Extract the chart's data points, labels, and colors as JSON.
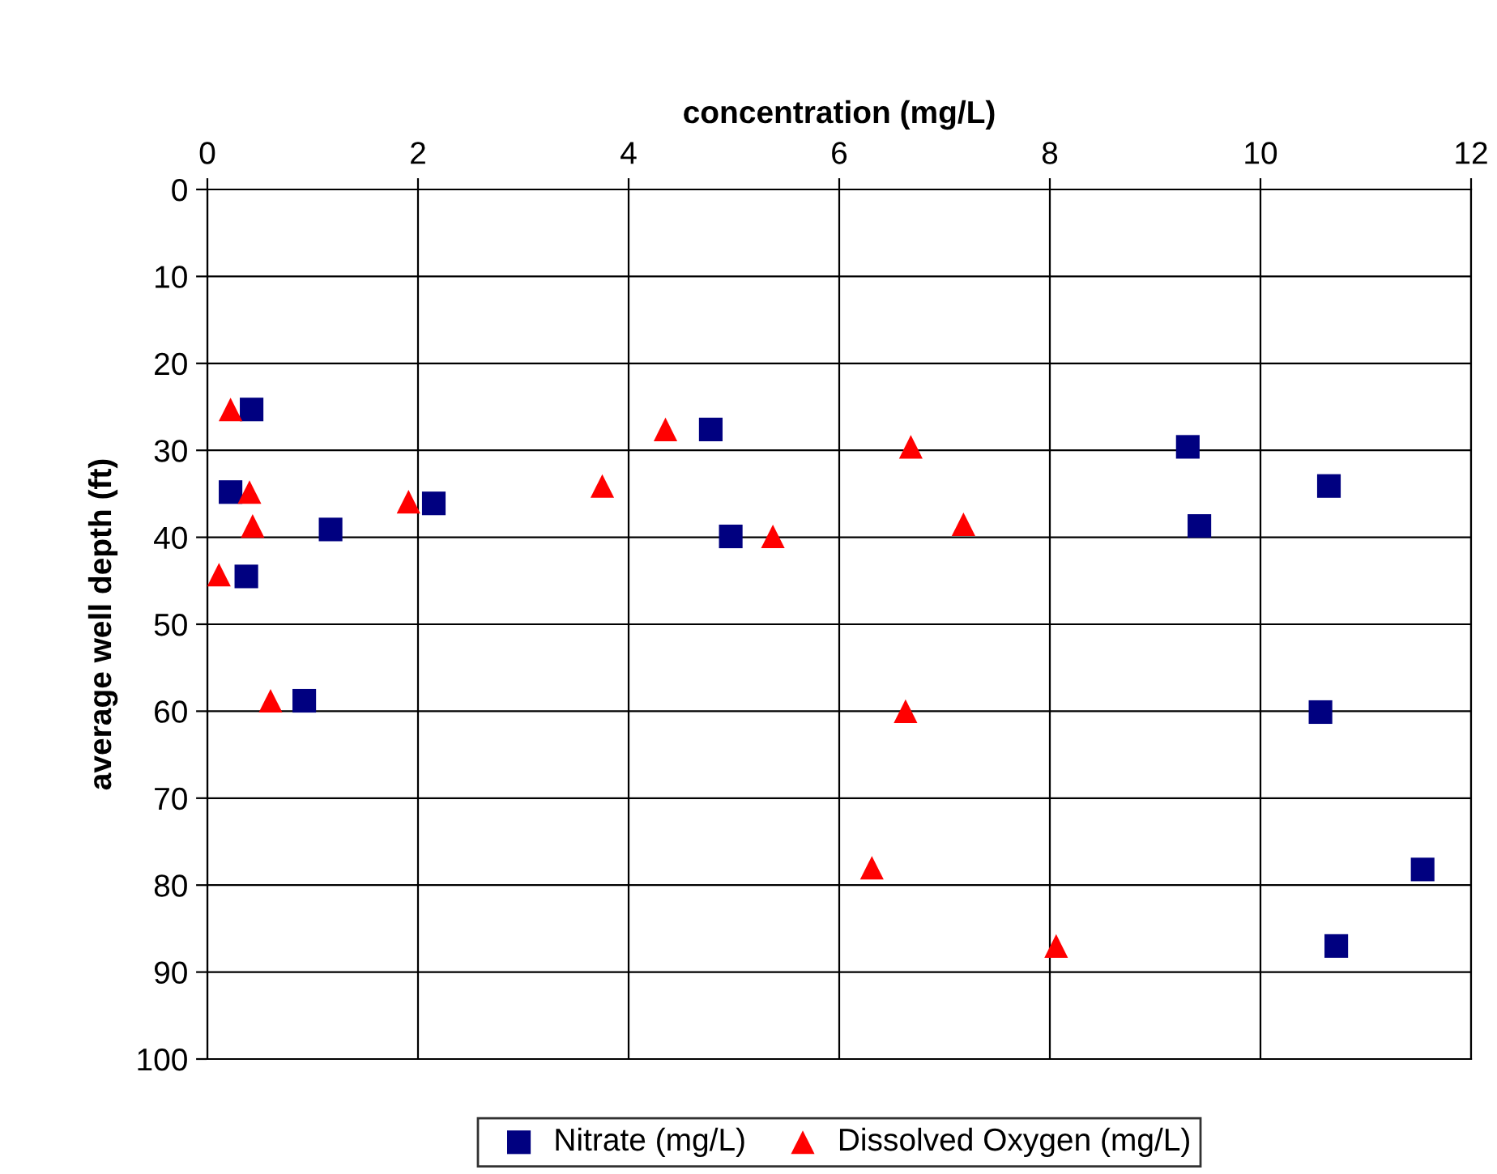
{
  "chart_data": {
    "type": "scatter",
    "xlabel": "concentration (mg/L)",
    "ylabel": "average well depth (ft)",
    "xlim": [
      0,
      12
    ],
    "xticks": [
      0,
      2,
      4,
      6,
      8,
      10,
      12
    ],
    "ylim": [
      100,
      0
    ],
    "yticks": [
      0,
      10,
      20,
      30,
      40,
      50,
      60,
      70,
      80,
      90,
      100
    ],
    "grid": true,
    "legend": "bottom",
    "series": [
      {
        "name": "Nitrate (mg/L)",
        "color": "#000080",
        "marker": "square",
        "x": [
          0.42,
          0.22,
          0.37,
          1.17,
          2.15,
          0.92,
          4.78,
          4.97,
          9.31,
          9.42,
          10.65,
          10.57,
          11.54,
          10.72
        ],
        "values": [
          25.3,
          34.8,
          44.5,
          39.1,
          36.1,
          58.8,
          27.6,
          39.9,
          29.6,
          38.7,
          34.1,
          60.1,
          78.2,
          87.0
        ]
      },
      {
        "name": "Dissolved Oxygen (mg/L)",
        "color": "#ff0000",
        "marker": "triangle",
        "x": [
          0.22,
          0.11,
          0.4,
          0.43,
          0.6,
          1.91,
          3.75,
          4.35,
          5.37,
          6.68,
          7.18,
          6.63,
          6.31,
          8.06
        ],
        "values": [
          25.3,
          44.3,
          34.8,
          38.7,
          58.8,
          35.9,
          34.1,
          27.6,
          39.9,
          29.6,
          38.5,
          60.0,
          78.0,
          87.0
        ]
      }
    ]
  }
}
